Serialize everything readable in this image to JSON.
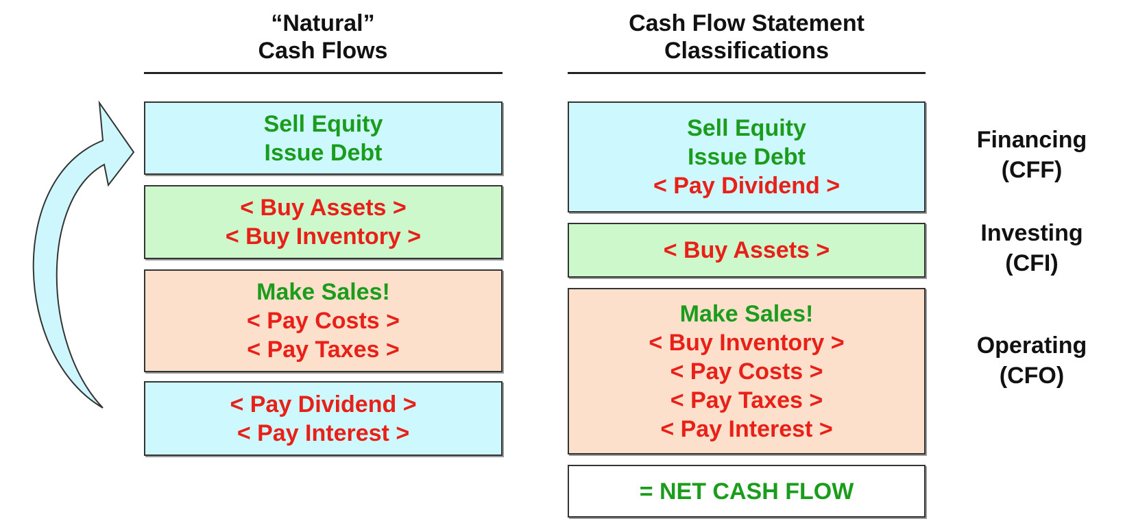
{
  "left_header": [
    "“Natural”",
    "Cash Flows"
  ],
  "right_header": [
    "Cash Flow Statement",
    "Classifications"
  ],
  "left_boxes": [
    {
      "fill": "blue",
      "lines": [
        {
          "text": "Sell Equity",
          "color": "green"
        },
        {
          "text": "Issue Debt",
          "color": "green"
        }
      ]
    },
    {
      "fill": "green",
      "lines": [
        {
          "text": "< Buy Assets >",
          "color": "red"
        },
        {
          "text": "< Buy Inventory >",
          "color": "red"
        }
      ]
    },
    {
      "fill": "peach",
      "lines": [
        {
          "text": "Make Sales!",
          "color": "green"
        },
        {
          "text": "< Pay Costs >",
          "color": "red"
        },
        {
          "text": "< Pay Taxes >",
          "color": "red"
        }
      ]
    },
    {
      "fill": "blue",
      "lines": [
        {
          "text": "< Pay Dividend >",
          "color": "red"
        },
        {
          "text": "< Pay Interest >",
          "color": "red"
        }
      ]
    }
  ],
  "right_boxes": [
    {
      "fill": "blue",
      "lines": [
        {
          "text": "Sell Equity",
          "color": "green"
        },
        {
          "text": "Issue Debt",
          "color": "green"
        },
        {
          "text": "< Pay Dividend >",
          "color": "red"
        }
      ]
    },
    {
      "fill": "green",
      "lines": [
        {
          "text": "< Buy Assets >",
          "color": "red"
        }
      ]
    },
    {
      "fill": "peach",
      "lines": [
        {
          "text": "Make Sales!",
          "color": "green"
        },
        {
          "text": "< Buy Inventory >",
          "color": "red"
        },
        {
          "text": "< Pay Costs >",
          "color": "red"
        },
        {
          "text": "< Pay Taxes >",
          "color": "red"
        },
        {
          "text": "< Pay Interest >",
          "color": "red"
        }
      ]
    },
    {
      "fill": "white",
      "lines": [
        {
          "text": "= NET CASH FLOW",
          "color": "green"
        }
      ]
    }
  ],
  "classifications": [
    [
      "Financing",
      "(CFF)"
    ],
    [
      "Investing",
      "(CFI)"
    ],
    [
      "Operating",
      "(CFO)"
    ]
  ]
}
